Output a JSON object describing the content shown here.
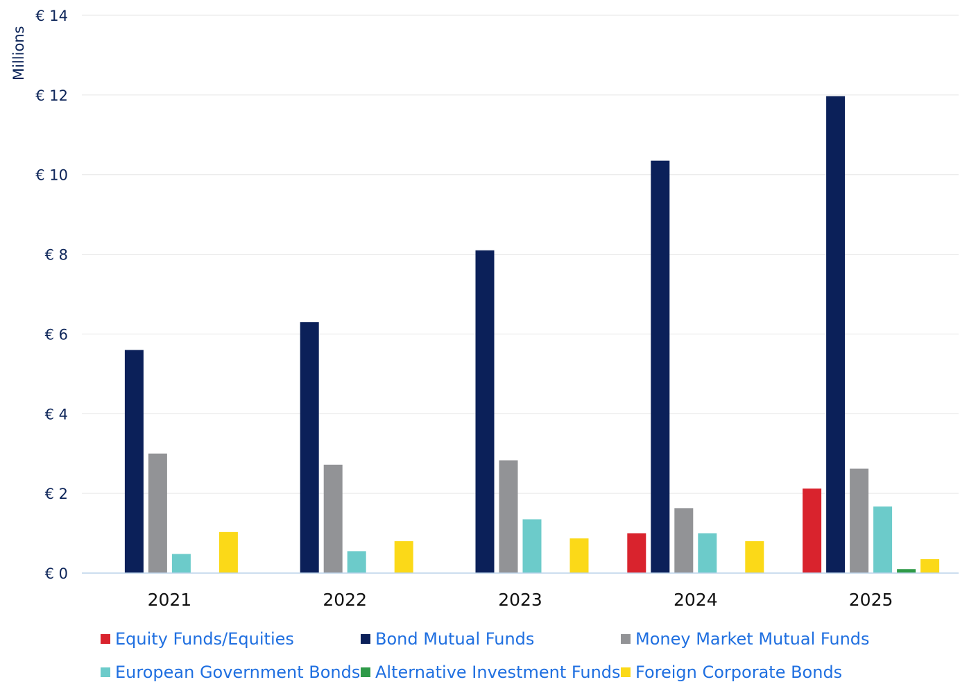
{
  "chart_data": {
    "type": "bar",
    "ylabel": "Millions",
    "ylim": [
      0,
      14
    ],
    "yticks": [
      0,
      2,
      4,
      6,
      8,
      10,
      12,
      14
    ],
    "ytick_prefix": "€ ",
    "grid": true,
    "legend_position": "bottom",
    "categories": [
      "2021",
      "2022",
      "2023",
      "2024",
      "2025"
    ],
    "series": [
      {
        "name": "Equity Funds/Equities",
        "color": "#d9232d",
        "values": [
          0,
          0,
          0,
          1.0,
          2.12
        ]
      },
      {
        "name": "Bond Mutual Funds",
        "color": "#0b2059",
        "values": [
          5.6,
          6.3,
          8.1,
          10.35,
          11.97
        ]
      },
      {
        "name": "Money Market Mutual Funds",
        "color": "#929396",
        "values": [
          3.0,
          2.72,
          2.83,
          1.63,
          2.62
        ]
      },
      {
        "name": "European Government Bonds",
        "color": "#6ccbca",
        "values": [
          0.48,
          0.55,
          1.35,
          1.0,
          1.67
        ]
      },
      {
        "name": "Alternative Investment Funds",
        "color": "#2e9a48",
        "values": [
          0,
          0,
          0,
          0,
          0.1
        ]
      },
      {
        "name": "Foreign Corporate Bonds",
        "color": "#fbd918",
        "values": [
          1.03,
          0.8,
          0.87,
          0.8,
          0.35
        ]
      }
    ]
  }
}
